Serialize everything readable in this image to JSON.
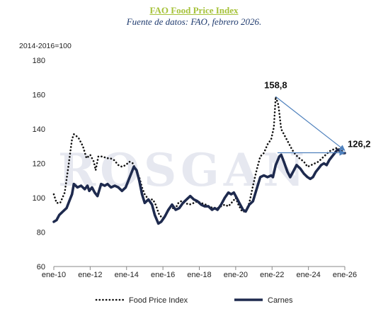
{
  "header": {
    "title": "FAO Food Price Index",
    "subtitle": "Fuente de datos: FAO, febrero 2026."
  },
  "watermark": "ROSGAN",
  "chart_data": {
    "type": "line",
    "unit_label": "2014-2016=100",
    "ylim": [
      60,
      180
    ],
    "yticks": [
      60,
      80,
      100,
      120,
      140,
      160,
      180
    ],
    "xlim": [
      2010.0,
      2026.0
    ],
    "xticks": [
      {
        "x": 2010,
        "label": "ene-10"
      },
      {
        "x": 2012,
        "label": "ene-12"
      },
      {
        "x": 2014,
        "label": "ene-14"
      },
      {
        "x": 2016,
        "label": "ene-16"
      },
      {
        "x": 2018,
        "label": "ene-18"
      },
      {
        "x": 2020,
        "label": "ene-20"
      },
      {
        "x": 2022,
        "label": "ene-22"
      },
      {
        "x": 2024,
        "label": "ene-24"
      },
      {
        "x": 2026,
        "label": "ene-26"
      }
    ],
    "grid": false,
    "legend_position": "bottom",
    "series": [
      {
        "name": "Food Price Index",
        "style": "dotted",
        "color": "#111111",
        "points": [
          [
            2010.0,
            102
          ],
          [
            2010.15,
            97
          ],
          [
            2010.35,
            97
          ],
          [
            2010.6,
            103
          ],
          [
            2010.8,
            118
          ],
          [
            2011.0,
            134
          ],
          [
            2011.1,
            137
          ],
          [
            2011.35,
            135
          ],
          [
            2011.6,
            130
          ],
          [
            2011.8,
            123
          ],
          [
            2012.0,
            125
          ],
          [
            2012.2,
            121
          ],
          [
            2012.3,
            116
          ],
          [
            2012.45,
            124
          ],
          [
            2012.7,
            124
          ],
          [
            2012.9,
            123
          ],
          [
            2013.1,
            123
          ],
          [
            2013.3,
            122
          ],
          [
            2013.55,
            119
          ],
          [
            2013.75,
            118
          ],
          [
            2013.95,
            119
          ],
          [
            2014.15,
            121
          ],
          [
            2014.35,
            120
          ],
          [
            2014.55,
            115
          ],
          [
            2014.7,
            112
          ],
          [
            2014.85,
            106
          ],
          [
            2015.0,
            102
          ],
          [
            2015.2,
            99
          ],
          [
            2015.45,
            99
          ],
          [
            2015.6,
            96
          ],
          [
            2015.8,
            90
          ],
          [
            2016.0,
            88
          ],
          [
            2016.2,
            91
          ],
          [
            2016.45,
            95
          ],
          [
            2016.65,
            93
          ],
          [
            2016.85,
            97
          ],
          [
            2017.0,
            98
          ],
          [
            2017.2,
            97
          ],
          [
            2017.45,
            96
          ],
          [
            2017.7,
            97
          ],
          [
            2017.9,
            98
          ],
          [
            2018.1,
            97
          ],
          [
            2018.35,
            96
          ],
          [
            2018.55,
            95
          ],
          [
            2018.75,
            94
          ],
          [
            2019.0,
            94
          ],
          [
            2019.2,
            95
          ],
          [
            2019.4,
            96
          ],
          [
            2019.6,
            95
          ],
          [
            2019.85,
            98
          ],
          [
            2020.0,
            100
          ],
          [
            2020.15,
            96
          ],
          [
            2020.35,
            92
          ],
          [
            2020.55,
            92
          ],
          [
            2020.75,
            97
          ],
          [
            2020.95,
            107
          ],
          [
            2021.15,
            116
          ],
          [
            2021.35,
            124
          ],
          [
            2021.55,
            126
          ],
          [
            2021.75,
            131
          ],
          [
            2021.95,
            134
          ],
          [
            2022.1,
            141
          ],
          [
            2022.2,
            158.8
          ],
          [
            2022.35,
            154
          ],
          [
            2022.5,
            140
          ],
          [
            2022.7,
            136
          ],
          [
            2022.9,
            132
          ],
          [
            2023.1,
            128
          ],
          [
            2023.3,
            125
          ],
          [
            2023.5,
            123
          ],
          [
            2023.75,
            121
          ],
          [
            2023.95,
            118
          ],
          [
            2024.15,
            119
          ],
          [
            2024.35,
            120
          ],
          [
            2024.55,
            121
          ],
          [
            2024.75,
            123
          ],
          [
            2024.95,
            125
          ],
          [
            2025.15,
            127
          ],
          [
            2025.35,
            128
          ],
          [
            2025.55,
            129
          ],
          [
            2025.75,
            128
          ],
          [
            2025.95,
            126.2
          ]
        ]
      },
      {
        "name": "Carnes",
        "style": "solid",
        "color": "#1e2a4e",
        "points": [
          [
            2010.0,
            86
          ],
          [
            2010.15,
            87
          ],
          [
            2010.3,
            90
          ],
          [
            2010.5,
            92
          ],
          [
            2010.7,
            94
          ],
          [
            2010.85,
            98
          ],
          [
            2011.0,
            102
          ],
          [
            2011.1,
            108
          ],
          [
            2011.3,
            106
          ],
          [
            2011.5,
            107
          ],
          [
            2011.7,
            105
          ],
          [
            2011.85,
            107
          ],
          [
            2011.95,
            104
          ],
          [
            2012.1,
            106
          ],
          [
            2012.25,
            103
          ],
          [
            2012.4,
            101
          ],
          [
            2012.6,
            108
          ],
          [
            2012.8,
            107
          ],
          [
            2012.95,
            108
          ],
          [
            2013.15,
            106
          ],
          [
            2013.35,
            107
          ],
          [
            2013.55,
            106
          ],
          [
            2013.75,
            104
          ],
          [
            2013.95,
            106
          ],
          [
            2014.1,
            110
          ],
          [
            2014.25,
            114
          ],
          [
            2014.4,
            118
          ],
          [
            2014.55,
            116
          ],
          [
            2014.7,
            110
          ],
          [
            2014.85,
            102
          ],
          [
            2015.0,
            97
          ],
          [
            2015.2,
            99
          ],
          [
            2015.4,
            96
          ],
          [
            2015.55,
            90
          ],
          [
            2015.75,
            85
          ],
          [
            2015.9,
            86
          ],
          [
            2016.1,
            89
          ],
          [
            2016.3,
            93
          ],
          [
            2016.5,
            96
          ],
          [
            2016.7,
            93
          ],
          [
            2016.9,
            94
          ],
          [
            2017.1,
            97
          ],
          [
            2017.3,
            99
          ],
          [
            2017.5,
            101
          ],
          [
            2017.7,
            99
          ],
          [
            2017.9,
            98
          ],
          [
            2018.1,
            96
          ],
          [
            2018.3,
            95
          ],
          [
            2018.5,
            95
          ],
          [
            2018.7,
            93
          ],
          [
            2018.85,
            94
          ],
          [
            2019.0,
            93
          ],
          [
            2019.2,
            96
          ],
          [
            2019.4,
            100
          ],
          [
            2019.6,
            103
          ],
          [
            2019.75,
            102
          ],
          [
            2019.9,
            103
          ],
          [
            2020.05,
            100
          ],
          [
            2020.2,
            97
          ],
          [
            2020.4,
            93
          ],
          [
            2020.55,
            92
          ],
          [
            2020.75,
            96
          ],
          [
            2020.95,
            98
          ],
          [
            2021.15,
            105
          ],
          [
            2021.35,
            112
          ],
          [
            2021.55,
            113
          ],
          [
            2021.75,
            112
          ],
          [
            2021.95,
            113
          ],
          [
            2022.05,
            112
          ],
          [
            2022.2,
            119
          ],
          [
            2022.4,
            124
          ],
          [
            2022.5,
            125
          ],
          [
            2022.65,
            121
          ],
          [
            2022.85,
            115
          ],
          [
            2023.0,
            112
          ],
          [
            2023.15,
            115
          ],
          [
            2023.35,
            119
          ],
          [
            2023.55,
            117
          ],
          [
            2023.75,
            114
          ],
          [
            2023.95,
            112
          ],
          [
            2024.1,
            111
          ],
          [
            2024.25,
            112
          ],
          [
            2024.4,
            115
          ],
          [
            2024.55,
            117
          ],
          [
            2024.7,
            119
          ],
          [
            2024.85,
            120
          ],
          [
            2025.0,
            119
          ],
          [
            2025.15,
            122
          ],
          [
            2025.3,
            124
          ],
          [
            2025.45,
            126
          ],
          [
            2025.6,
            128
          ],
          [
            2025.75,
            127
          ],
          [
            2025.9,
            126
          ],
          [
            2026.0,
            126
          ]
        ]
      }
    ],
    "annotations": [
      {
        "label": "158,8",
        "at": [
          2022.2,
          158.8
        ]
      },
      {
        "label": "126,2",
        "at": [
          2026.0,
          126.2
        ]
      }
    ],
    "arrows": [
      {
        "from": [
          2022.2,
          158.8
        ],
        "to": [
          2026.0,
          127.5
        ]
      },
      {
        "from": [
          2022.3,
          126.2
        ],
        "to": [
          2026.0,
          126.2
        ]
      }
    ],
    "arrow_color": "#4f81bd"
  }
}
